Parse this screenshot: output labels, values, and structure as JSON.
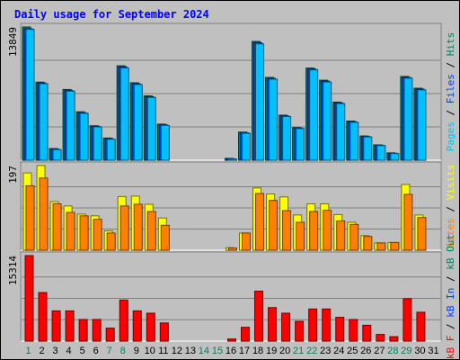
{
  "chart_data": {
    "type": "bar",
    "title": "Daily usage for September 2024",
    "days": [
      "1",
      "2",
      "3",
      "4",
      "5",
      "6",
      "7",
      "8",
      "9",
      "10",
      "11",
      "12",
      "13",
      "14",
      "15",
      "16",
      "17",
      "18",
      "19",
      "20",
      "21",
      "22",
      "23",
      "24",
      "25",
      "26",
      "27",
      "28",
      "29",
      "30",
      "31"
    ],
    "weekend_days": [
      "1",
      "7",
      "8",
      "14",
      "15",
      "21",
      "22",
      "28",
      "29"
    ],
    "panels": [
      {
        "name": "hits-files-pages",
        "ymax": 13849,
        "ymax_label": "13849",
        "axis_label_parts": [
          {
            "text": "Pages",
            "color": "#00c0ff"
          },
          {
            "text": " / ",
            "color": "#000000"
          },
          {
            "text": "Files",
            "color": "#0040ff"
          },
          {
            "text": " / ",
            "color": "#000000"
          },
          {
            "text": "Hits",
            "color": "#00805c"
          }
        ],
        "series": [
          {
            "name": "Hits",
            "color": "#00805c",
            "values": [
              13849,
              8117,
              1210,
              7350,
              5036,
              3582,
              2305,
              9816,
              8049,
              6688,
              3750,
              0,
              0,
              0,
              0,
              189,
              2920,
              12350,
              8605,
              4680,
              3396,
              9578,
              8315,
              6040,
              4070,
              2520,
              1590,
              760,
              8703,
              7480,
              0
            ]
          },
          {
            "name": "Files",
            "color": "#0040ff",
            "values": [
              13660,
              8030,
              1150,
              7250,
              4930,
              3520,
              2240,
              9700,
              7950,
              6600,
              3680,
              0,
              0,
              0,
              0,
              150,
              2860,
              12210,
              8500,
              4600,
              3340,
              9480,
              8220,
              5960,
              4000,
              2470,
              1560,
              720,
              8610,
              7390,
              0
            ]
          },
          {
            "name": "Pages",
            "color": "#00c0ff",
            "values": [
              13600,
              7950,
              1100,
              7180,
              4870,
              3460,
              2180,
              9600,
              7870,
              6520,
              3620,
              0,
              0,
              0,
              0,
              120,
              2800,
              12090,
              8420,
              4540,
              3290,
              9390,
              8130,
              5880,
              3940,
              2420,
              1520,
              690,
              8530,
              7310,
              0
            ]
          }
        ]
      },
      {
        "name": "visits-sites",
        "ymax": 197,
        "ymax_label": "197",
        "axis_label_parts": [
          {
            "text": "Sites",
            "color": "#ff8000"
          },
          {
            "text": " / ",
            "color": "#000000"
          },
          {
            "text": "Visits",
            "color": "#ffff00"
          }
        ],
        "series": [
          {
            "name": "Visits",
            "color": "#ffff00",
            "values": [
              180,
              197,
              113,
              103,
              84,
              80,
              45,
              125,
              126,
              107,
              75,
              0,
              0,
              0,
              0,
              6,
              40,
              145,
              131,
              124,
              82,
              108,
              108,
              83,
              65,
              34,
              17,
              18,
              153,
              82,
              0
            ]
          },
          {
            "name": "Sites",
            "color": "#ff8000",
            "values": [
              150,
              168,
              108,
              88,
              80,
              72,
              40,
              103,
              107,
              90,
              58,
              0,
              0,
              0,
              0,
              5,
              40,
              132,
              116,
              92,
              65,
              90,
              93,
              68,
              60,
              32,
              17,
              18,
              130,
              76,
              0
            ]
          }
        ]
      },
      {
        "name": "kbf-kbin-kbout",
        "ymax": 15314,
        "ymax_label": "15314",
        "axis_label_parts": [
          {
            "text": "kB F",
            "color": "#ff0000"
          },
          {
            "text": " / ",
            "color": "#000000"
          },
          {
            "text": "kB In",
            "color": "#0040ff"
          },
          {
            "text": " / ",
            "color": "#000000"
          },
          {
            "text": "kB Out",
            "color": "#00805c"
          }
        ],
        "series": [
          {
            "name": "kB F",
            "color": "#ff0000",
            "values": [
              15314,
              8700,
              5414,
              5414,
              3870,
              3870,
              2320,
              7350,
              5414,
              5000,
              3250,
              0,
              0,
              0,
              0,
              380,
              2470,
              8950,
              6000,
              5000,
              3540,
              5750,
              5750,
              4260,
              3870,
              2840,
              1190,
              790,
              7600,
              5170,
              0
            ]
          }
        ]
      }
    ]
  }
}
